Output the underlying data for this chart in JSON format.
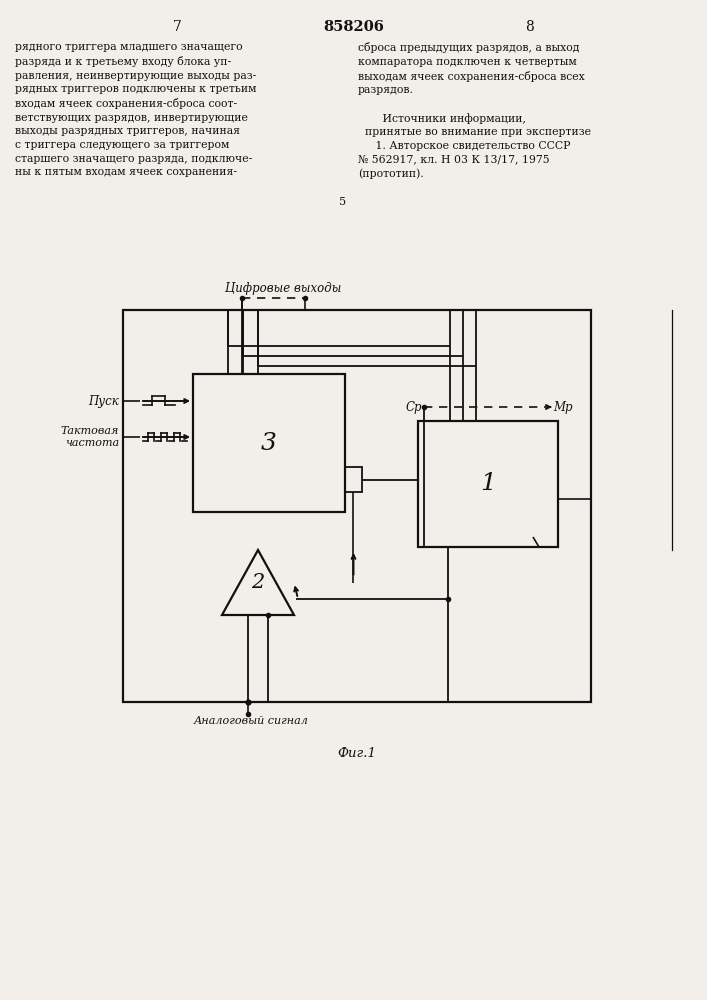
{
  "bg_color": "#f2efea",
  "text_color": "#111111",
  "line_color": "#111111",
  "page_num_left": "7",
  "page_num_center": "858206",
  "page_num_right": "8",
  "left_col": "рядного триггера младшего значащего\nразряда и к третьему входу блока уп-\nравления, неинвертирующие выходы раз-\nрядных триггеров подключены к третьим\nвходам ячеек сохранения-сброса соот-\nветствующих разрядов, инвертирующие\nвыходы разрядных триггеров, начиная\nс триггера следующего за триггером\nстаршего значащего разряда, подключе-\nны к пятым входам ячеек сохранения-",
  "right_col": "сброса предыдущих разрядов, а выход\nкомпаратора подключен к четвертым\nвыходам ячеек сохранения-сброса всех\nразрядов.\n\n       Источники информации,\n  принятые во внимание при экспертизе\n     1. Авторское свидетельство СССР\n№ 562917, кл. Н 03 К 13/17, 1975\n(прототип).",
  "label_digital": "Цифровые выходы",
  "label_pusk": "Пуск",
  "label_takt": "Тактовая\nчастота",
  "label_analog": "Аналоговый сигнал",
  "label_fig": "Фиг.1",
  "label_sr": "Ср",
  "label_mr": "Мр",
  "label_1": "1",
  "label_2": "2",
  "label_3": "3"
}
